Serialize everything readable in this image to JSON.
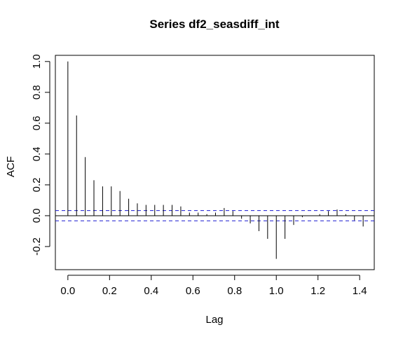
{
  "chart_data": {
    "type": "bar",
    "title": "Series  df2_seasdiff_int",
    "xlabel": "Lag",
    "ylabel": "ACF",
    "xlim": [
      -0.06,
      1.47
    ],
    "ylim": [
      -0.35,
      1.04
    ],
    "x_ticks": [
      "0.0",
      "0.2",
      "0.4",
      "0.6",
      "0.8",
      "1.0",
      "1.2",
      "1.4"
    ],
    "y_ticks": [
      "-0.2",
      "0.0",
      "0.2",
      "0.4",
      "0.6",
      "0.8",
      "1.0"
    ],
    "confidence_bound": 0.033,
    "x": [
      0.0,
      0.0417,
      0.0833,
      0.125,
      0.1667,
      0.2083,
      0.25,
      0.2917,
      0.3333,
      0.375,
      0.4167,
      0.4583,
      0.5,
      0.5417,
      0.5833,
      0.625,
      0.6667,
      0.7083,
      0.75,
      0.7917,
      0.8333,
      0.875,
      0.9167,
      0.9583,
      1.0,
      1.0417,
      1.0833,
      1.125,
      1.1667,
      1.2083,
      1.25,
      1.2917,
      1.3333,
      1.375,
      1.4167
    ],
    "values": [
      1.0,
      0.65,
      0.38,
      0.23,
      0.19,
      0.19,
      0.16,
      0.11,
      0.08,
      0.07,
      0.07,
      0.07,
      0.07,
      0.06,
      0.02,
      0.02,
      0.01,
      0.02,
      0.05,
      0.03,
      -0.02,
      -0.05,
      -0.1,
      -0.15,
      -0.28,
      -0.15,
      -0.06,
      -0.01,
      0.0,
      0.01,
      0.03,
      0.04,
      0.01,
      -0.03,
      -0.07
    ],
    "grid": false,
    "colors": {
      "bars": "#000000",
      "confidence_line": "#1a1ad0",
      "zero_line": "#000000"
    }
  }
}
